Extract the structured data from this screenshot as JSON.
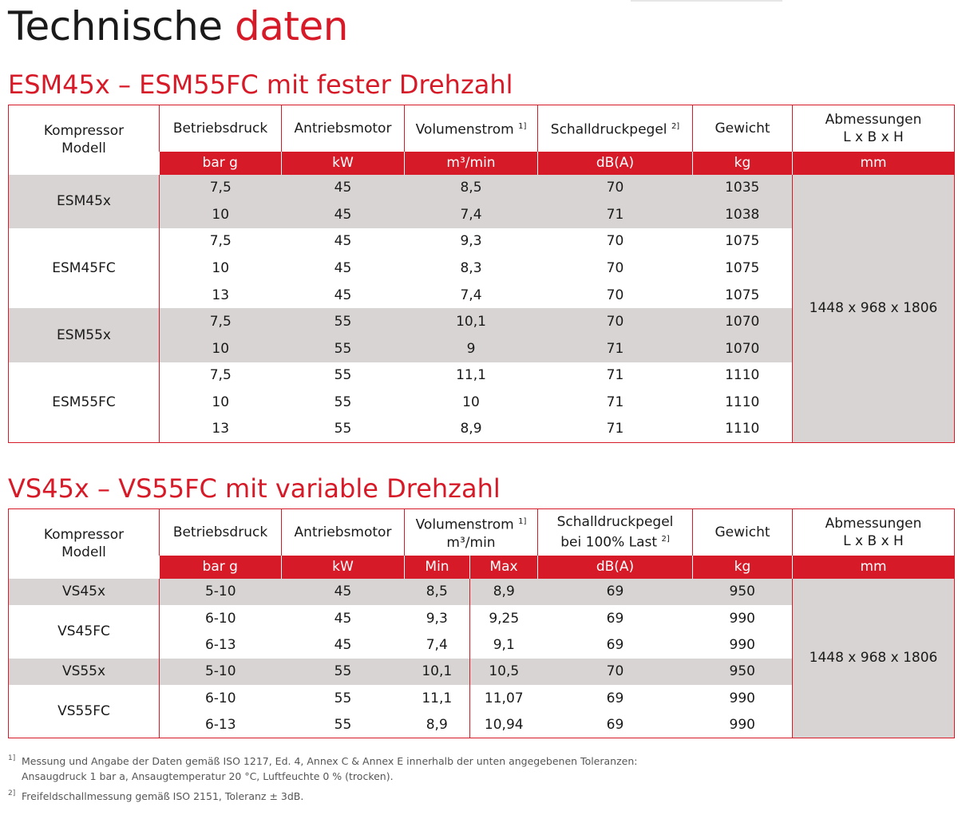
{
  "title": {
    "main": "Technische",
    "accent": "daten"
  },
  "section1": {
    "title": "ESM45x – ESM55FC mit fester Drehzahl",
    "headers": {
      "model": [
        "Kompressor",
        "Modell"
      ],
      "pressure": "Betriebsdruck",
      "motor": "Antriebsmotor",
      "flow": "Volumenstrom",
      "flow_note": "1]",
      "sound": "Schalldruckpegel",
      "sound_note": "2]",
      "weight": "Gewicht",
      "dims": [
        "Abmessungen",
        "L x B x H"
      ]
    },
    "units": [
      "bar g",
      "kW",
      "m³/min",
      "dB(A)",
      "kg",
      "mm"
    ],
    "dimensions": "1448 x 968 x 1806",
    "groups": [
      {
        "model": "ESM45x",
        "rows": [
          [
            "7,5",
            "45",
            "8,5",
            "70",
            "1035"
          ],
          [
            "10",
            "45",
            "7,4",
            "71",
            "1038"
          ]
        ]
      },
      {
        "model": "ESM45FC",
        "rows": [
          [
            "7,5",
            "45",
            "9,3",
            "70",
            "1075"
          ],
          [
            "10",
            "45",
            "8,3",
            "70",
            "1075"
          ],
          [
            "13",
            "45",
            "7,4",
            "70",
            "1075"
          ]
        ]
      },
      {
        "model": "ESM55x",
        "rows": [
          [
            "7,5",
            "55",
            "10,1",
            "70",
            "1070"
          ],
          [
            "10",
            "55",
            "9",
            "71",
            "1070"
          ]
        ]
      },
      {
        "model": "ESM55FC",
        "rows": [
          [
            "7,5",
            "55",
            "11,1",
            "71",
            "1110"
          ],
          [
            "10",
            "55",
            "10",
            "71",
            "1110"
          ],
          [
            "13",
            "55",
            "8,9",
            "71",
            "1110"
          ]
        ]
      }
    ]
  },
  "section2": {
    "title": "VS45x – VS55FC mit variable Drehzahl",
    "headers": {
      "model": [
        "Kompressor",
        "Modell"
      ],
      "pressure": "Betriebsdruck",
      "motor": "Antriebsmotor",
      "flow": "Volumenstrom",
      "flow_note": "1]",
      "flow_unit": "m³/min",
      "sound": "Schalldruckpegel",
      "sound2": "bei 100% Last",
      "sound_note": "2]",
      "weight": "Gewicht",
      "dims": [
        "Abmessungen",
        "L x B x H"
      ]
    },
    "units": [
      "bar g",
      "kW",
      "Min",
      "Max",
      "dB(A)",
      "kg",
      "mm"
    ],
    "dimensions": "1448 x 968 x 1806",
    "groups": [
      {
        "model": "VS45x",
        "rows": [
          [
            "5-10",
            "45",
            "8,5",
            "8,9",
            "69",
            "950"
          ]
        ]
      },
      {
        "model": "VS45FC",
        "rows": [
          [
            "6-10",
            "45",
            "9,3",
            "9,25",
            "69",
            "990"
          ],
          [
            "6-13",
            "45",
            "7,4",
            "9,1",
            "69",
            "990"
          ]
        ]
      },
      {
        "model": "VS55x",
        "rows": [
          [
            "5-10",
            "55",
            "10,1",
            "10,5",
            "70",
            "950"
          ]
        ]
      },
      {
        "model": "VS55FC",
        "rows": [
          [
            "6-10",
            "55",
            "11,1",
            "11,07",
            "69",
            "990"
          ],
          [
            "6-13",
            "55",
            "8,9",
            "10,94",
            "69",
            "990"
          ]
        ]
      }
    ]
  },
  "footnotes": [
    {
      "mark": "1]",
      "lines": [
        "Messung und Angabe der Daten gemäß ISO 1217, Ed. 4, Annex C & Annex E innerhalb der unten angegebenen Toleranzen:",
        "Ansaugdruck 1 bar a, Ansaugtemperatur 20 °C, Luftfeuchte 0 % (trocken)."
      ]
    },
    {
      "mark": "2]",
      "lines": [
        "Freifeldschallmessung gemäß ISO 2151, Toleranz ± 3dB."
      ]
    }
  ]
}
